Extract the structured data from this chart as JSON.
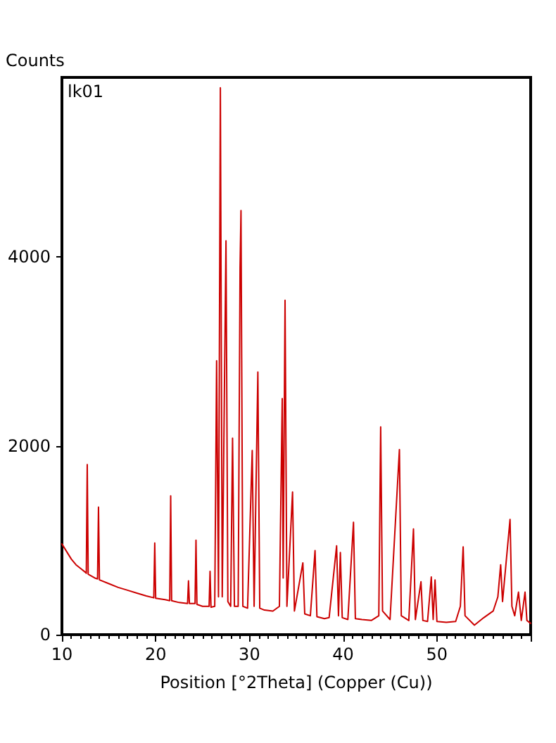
{
  "chart_data": {
    "type": "line",
    "xlabel": "Position [°2Theta] (Copper (Cu))",
    "ylabel": "Counts",
    "annotations": [
      "lk01"
    ],
    "xlim": [
      10,
      60
    ],
    "xticks": [
      10,
      20,
      30,
      40,
      50
    ],
    "ylim": [
      0,
      5900
    ],
    "yticks": [
      0,
      2000,
      4000
    ],
    "grid": false,
    "marker": "none",
    "line_style": "solid",
    "series": [
      {
        "color": "#cc0000",
        "x": [
          10.0,
          10.5,
          11,
          11.5,
          12,
          12.5,
          12.6,
          12.7,
          12.8,
          13.5,
          13.8,
          13.9,
          14.0,
          15,
          16,
          17,
          18,
          19,
          19.8,
          19.9,
          20.0,
          21,
          21.5,
          21.6,
          21.7,
          22.5,
          23.4,
          23.5,
          23.6,
          24.2,
          24.3,
          24.4,
          25,
          25.7,
          25.8,
          25.9,
          26.3,
          26.5,
          26.7,
          26.9,
          27.1,
          27.5,
          27.7,
          28.0,
          28.2,
          28.4,
          28.8,
          29.0,
          29.1,
          29.3,
          29.8,
          30.3,
          30.5,
          30.9,
          31.1,
          31.6,
          32.5,
          33.2,
          33.5,
          33.6,
          33.8,
          34.0,
          34.6,
          34.8,
          35.7,
          35.9,
          36.5,
          37.0,
          37.2,
          38,
          38.5,
          39.3,
          39.5,
          39.7,
          39.9,
          40.5,
          41.1,
          41.3,
          42,
          43,
          43.8,
          44.0,
          44.2,
          45,
          46.0,
          46.2,
          47.0,
          47.5,
          47.7,
          48.3,
          48.5,
          49.0,
          49.4,
          49.6,
          49.8,
          50.0,
          51,
          52.0,
          52.5,
          52.8,
          53.0,
          54,
          55,
          56,
          56.5,
          56.8,
          57.0,
          57.8,
          58.0,
          58.3,
          58.7,
          59.0,
          59.4,
          59.6,
          60
        ],
        "values": [
          960,
          880,
          800,
          740,
          700,
          660,
          650,
          1800,
          640,
          600,
          590,
          1350,
          580,
          540,
          500,
          470,
          440,
          410,
          390,
          970,
          385,
          370,
          360,
          1470,
          360,
          340,
          330,
          570,
          330,
          330,
          1000,
          320,
          300,
          300,
          670,
          290,
          300,
          2900,
          400,
          5790,
          400,
          4170,
          350,
          300,
          2080,
          300,
          300,
          3880,
          4490,
          300,
          280,
          1950,
          300,
          2780,
          280,
          260,
          250,
          300,
          2500,
          600,
          3540,
          300,
          1510,
          250,
          760,
          220,
          200,
          890,
          190,
          170,
          180,
          940,
          200,
          870,
          180,
          160,
          1190,
          170,
          160,
          150,
          200,
          2200,
          250,
          160,
          1960,
          200,
          150,
          1120,
          160,
          560,
          150,
          140,
          610,
          160,
          580,
          140,
          130,
          140,
          300,
          930,
          200,
          100,
          180,
          250,
          400,
          740,
          350,
          1220,
          300,
          200,
          450,
          150,
          450,
          150,
          120
        ]
      }
    ]
  }
}
